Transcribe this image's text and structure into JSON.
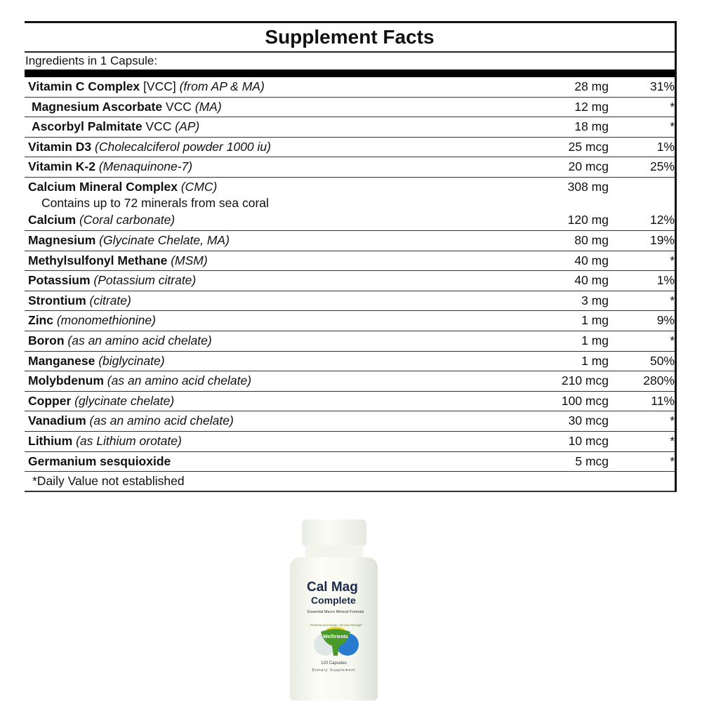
{
  "title": "Supplement Facts",
  "serving": "Ingredients in 1 Capsule:",
  "rows": [
    {
      "name": "Vitamin C Complex",
      "plain": " [VCC] ",
      "detail": "(from AP & MA)",
      "amount": "28 mg",
      "dv": "31%"
    },
    {
      "name": "Magnesium Ascorbate",
      "plain": " VCC ",
      "detail": "(MA)",
      "amount": "12 mg",
      "dv": "*"
    },
    {
      "name": "Ascorbyl Palmitate",
      "plain": " VCC ",
      "detail": "(AP)",
      "amount": "18 mg",
      "dv": "*"
    },
    {
      "name": "Vitamin D3",
      "plain": " ",
      "detail": "(Cholecalciferol powder 1000 iu)",
      "amount": "25 mcg",
      "dv": "1%"
    },
    {
      "name": "Vitamin K-2",
      "plain": " ",
      "detail": "(Menaquinone-7)",
      "amount": "20 mcg",
      "dv": "25%"
    }
  ],
  "cmc": {
    "name": "Calcium Mineral Complex",
    "detail": "(CMC)",
    "amount": "308 mg",
    "note": "Contains up to 72 minerals from sea coral",
    "calcium": {
      "name": "Calcium",
      "detail": "(Coral carbonate)",
      "amount": "120 mg",
      "dv": "12%"
    }
  },
  "rows2": [
    {
      "name": "Magnesium",
      "detail": "(Glycinate Chelate, MA)",
      "amount": "80 mg",
      "dv": "19%"
    },
    {
      "name": "Methylsulfonyl Methane",
      "detail": "(MSM)",
      "amount": "40 mg",
      "dv": "*"
    },
    {
      "name": "Potassium",
      "detail": "(Potassium citrate)",
      "amount": "40 mg",
      "dv": "1%"
    },
    {
      "name": "Strontium",
      "detail": "(citrate)",
      "amount": "3 mg",
      "dv": "*"
    },
    {
      "name": "Zinc",
      "detail": "(monomethionine)",
      "amount": "1 mg",
      "dv": "9%"
    },
    {
      "name": "Boron",
      "detail": "(as an amino acid chelate)",
      "amount": "1 mg",
      "dv": "*"
    },
    {
      "name": "Manganese",
      "detail": "(biglycinate)",
      "amount": "1 mg",
      "dv": "50%"
    },
    {
      "name": "Molybdenum",
      "detail": "(as an amino acid chelate)",
      "amount": "210 mcg",
      "dv": "280%"
    },
    {
      "name": "Copper",
      "detail": "(glycinate chelate)",
      "amount": "100 mcg",
      "dv": "11%"
    },
    {
      "name": "Vanadium",
      "detail": "(as an amino acid chelate)",
      "amount": "30 mcg",
      "dv": "*"
    },
    {
      "name": "Lithium",
      "detail": "(as Lithium orotate)",
      "amount": "10 mcg",
      "dv": "*"
    },
    {
      "name": "Germanium sesquioxide",
      "detail": "",
      "amount": "5 mcg",
      "dv": "*"
    }
  ],
  "footnote": "*Daily Value not established",
  "product": {
    "name_line1": "Cal Mag",
    "name_line2": "Complete",
    "tagline": "Essential Macro Mineral Formula",
    "grade": "Professional Grade, Clinical Strength",
    "brand": "Welltrients",
    "count": "120 Capsules",
    "type": "Dietary Supplement",
    "colors": {
      "navy": "#1b2a4a",
      "green": "#4a9a2a",
      "blue": "#2a7ad0",
      "yellow": "#f0d020"
    }
  }
}
